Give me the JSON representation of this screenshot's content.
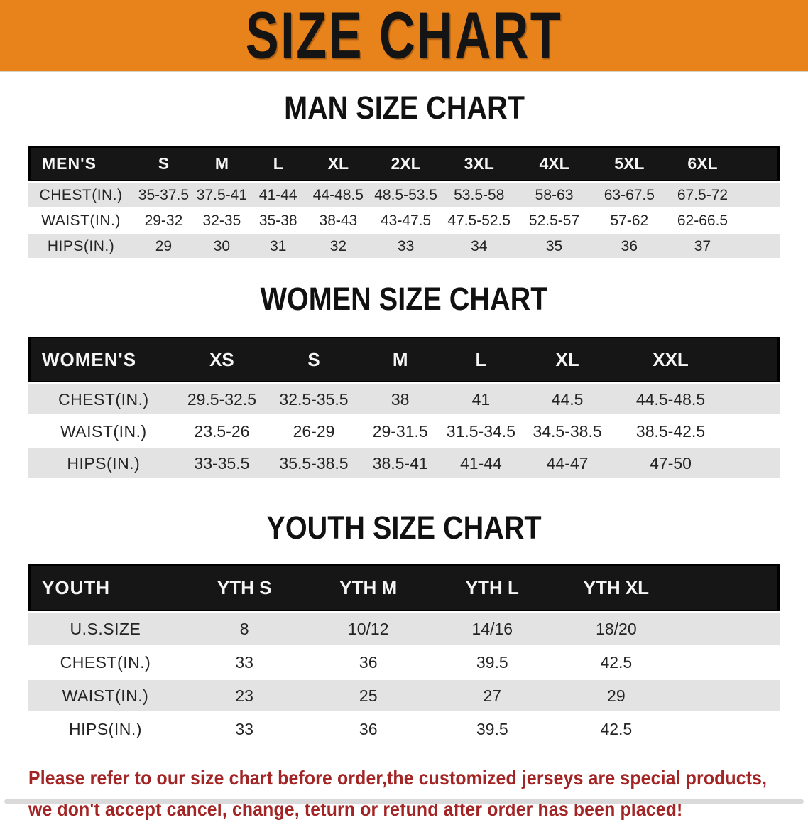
{
  "page": {
    "banner_title": "SIZE CHART",
    "banner_bg": "#E8831C",
    "table_header_bg": "#161616",
    "stripe_row_bg": "#E3E3E3",
    "note_color": "#A32424",
    "note_line1": "Please refer to our size chart before order,the customized jerseys are special products,",
    "note_line2": "we don't accept cancel, change, teturn or refund after order has been placed!"
  },
  "tables": {
    "men": {
      "heading": "MAN SIZE CHART",
      "corner": "MEN'S",
      "sizes": [
        "S",
        "M",
        "L",
        "XL",
        "2XL",
        "3XL",
        "4XL",
        "5XL",
        "6XL"
      ],
      "rows": [
        {
          "label": "CHEST(IN.)",
          "values": [
            "35-37.5",
            "37.5-41",
            "41-44",
            "44-48.5",
            "48.5-53.5",
            "53.5-58",
            "58-63",
            "63-67.5",
            "67.5-72"
          ]
        },
        {
          "label": "WAIST(IN.)",
          "values": [
            "29-32",
            "32-35",
            "35-38",
            "38-43",
            "43-47.5",
            "47.5-52.5",
            "52.5-57",
            "57-62",
            "62-66.5"
          ]
        },
        {
          "label": "HIPS(IN.)",
          "values": [
            "29",
            "30",
            "31",
            "32",
            "33",
            "34",
            "35",
            "36",
            "37"
          ]
        }
      ]
    },
    "women": {
      "heading": "WOMEN SIZE CHART",
      "corner": "WOMEN'S",
      "sizes": [
        "XS",
        "S",
        "M",
        "L",
        "XL",
        "XXL"
      ],
      "rows": [
        {
          "label": "CHEST(IN.)",
          "values": [
            "29.5-32.5",
            "32.5-35.5",
            "38",
            "41",
            "44.5",
            "44.5-48.5"
          ]
        },
        {
          "label": "WAIST(IN.)",
          "values": [
            "23.5-26",
            "26-29",
            "29-31.5",
            "31.5-34.5",
            "34.5-38.5",
            "38.5-42.5"
          ]
        },
        {
          "label": "HIPS(IN.)",
          "values": [
            "33-35.5",
            "35.5-38.5",
            "38.5-41",
            "41-44",
            "44-47",
            "47-50"
          ]
        }
      ]
    },
    "youth": {
      "heading": "YOUTH SIZE CHART",
      "corner": "YOUTH",
      "sizes": [
        "YTH S",
        "YTH M",
        "YTH L",
        "YTH XL"
      ],
      "rows": [
        {
          "label": "U.S.SIZE",
          "values": [
            "8",
            "10/12",
            "14/16",
            "18/20"
          ]
        },
        {
          "label": "CHEST(IN.)",
          "values": [
            "33",
            "36",
            "39.5",
            "42.5"
          ]
        },
        {
          "label": "WAIST(IN.)",
          "values": [
            "23",
            "25",
            "27",
            "29"
          ]
        },
        {
          "label": "HIPS(IN.)",
          "values": [
            "33",
            "36",
            "39.5",
            "42.5"
          ]
        }
      ]
    }
  }
}
